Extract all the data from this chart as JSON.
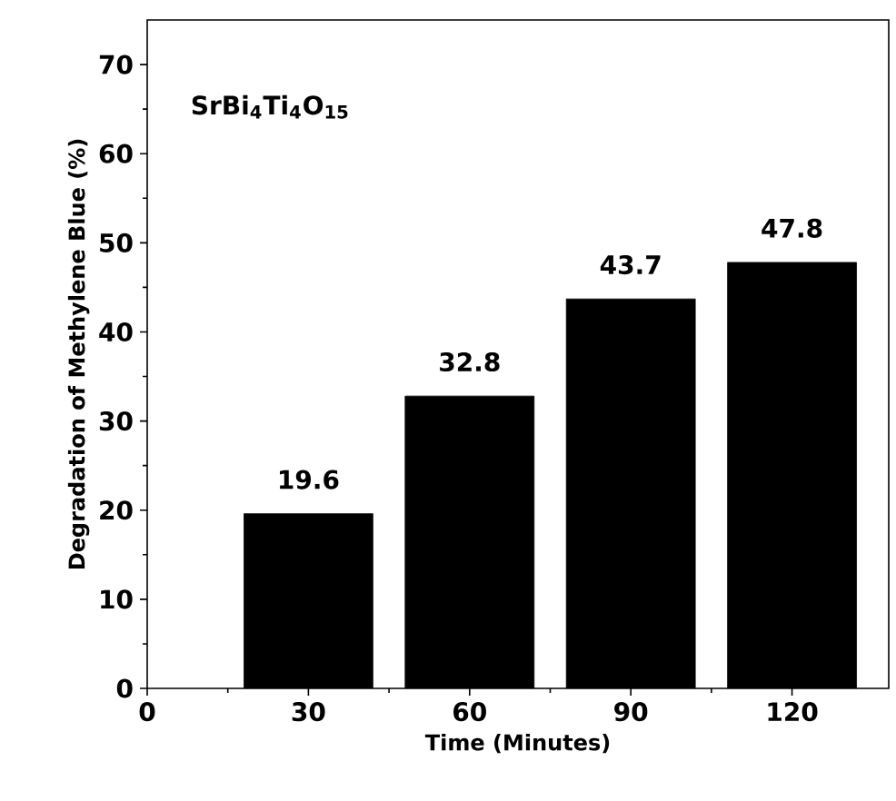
{
  "chart_data": {
    "type": "bar",
    "xlabel": "Time (Minutes)",
    "ylabel": "Degradation of Methylene Blue (%)",
    "annotations": [
      "SrBi$_{4}$Ti$_{4}$O$_{15}$"
    ],
    "x": [
      30,
      60,
      90,
      120
    ],
    "values": [
      19.6,
      32.8,
      43.7,
      47.8
    ],
    "color": "#000000",
    "data_labels": true,
    "xlim": [
      0,
      138
    ],
    "xticks": [
      0,
      30,
      60,
      90,
      120
    ],
    "ylim": [
      0,
      75
    ],
    "yticks": [
      0,
      10,
      20,
      30,
      40,
      50,
      60,
      70
    ]
  }
}
